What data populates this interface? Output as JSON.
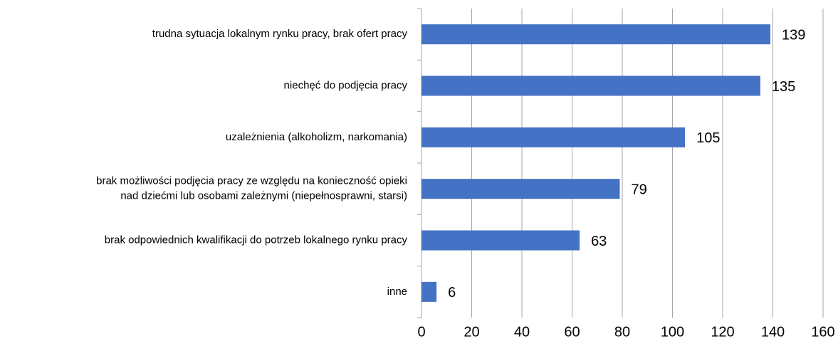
{
  "chart_data": {
    "type": "bar",
    "orientation": "horizontal",
    "categories": [
      "trudna sytuacja lokalnym rynku pracy, brak ofert pracy",
      "niechęć do podjęcia pracy",
      "uzależnienia (alkoholizm, narkomania)",
      "brak możliwości podjęcia pracy ze względu na konieczność opieki\nnad dziećmi lub osobami zależnymi (niepełnosprawni, starsi)",
      "brak odpowiednich kwalifikacji do potrzeb lokalnego rynku pracy",
      "inne"
    ],
    "values": [
      139,
      135,
      105,
      79,
      63,
      6
    ],
    "color": "#4472c4",
    "xlim": [
      0,
      160
    ],
    "xticks": [
      0,
      20,
      40,
      60,
      80,
      100,
      120,
      140,
      160
    ],
    "grid": true
  }
}
